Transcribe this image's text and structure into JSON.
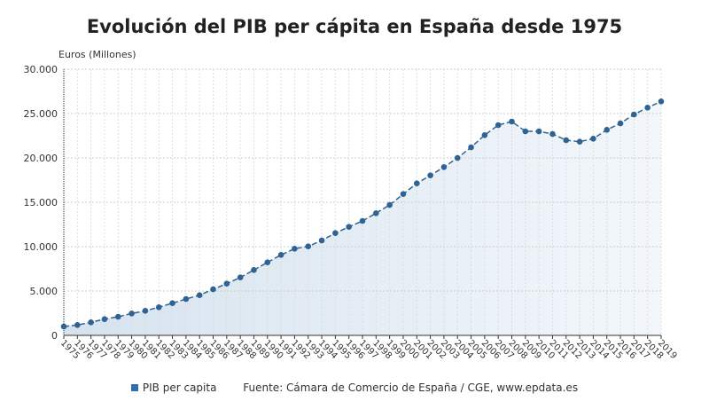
{
  "chart_data": {
    "type": "line",
    "title": "Evolución del PIB per cápita en España desde 1975",
    "ylabel": "Euros (Millones)",
    "xlabel": "",
    "ylim": [
      0,
      30000
    ],
    "yticks": [
      "0",
      "5.000",
      "10.000",
      "15.000",
      "20.000",
      "25.000",
      "30.000"
    ],
    "ytick_values": [
      0,
      5000,
      10000,
      15000,
      20000,
      25000,
      30000
    ],
    "grid": true,
    "x": [
      "1975",
      "1976",
      "1977",
      "1978",
      "1979",
      "1980",
      "1981",
      "1982",
      "1983",
      "1984",
      "1985",
      "1986",
      "1987",
      "1988",
      "1989",
      "1990",
      "1991",
      "1992",
      "1993",
      "1994",
      "1995",
      "1996",
      "1997",
      "1998",
      "1999",
      "2000",
      "2001",
      "2002",
      "2003",
      "2004",
      "2005",
      "2006",
      "2007",
      "2008",
      "2009",
      "2010",
      "2011",
      "2012",
      "2013",
      "2014",
      "2015",
      "2016",
      "2017",
      "2018",
      "2019"
    ],
    "series": [
      {
        "name": "PIB per capita",
        "color": "#2f6394",
        "values": [
          1000,
          1170,
          1470,
          1830,
          2100,
          2470,
          2770,
          3170,
          3630,
          4100,
          4530,
          5200,
          5830,
          6530,
          7370,
          8230,
          9070,
          9770,
          10030,
          10700,
          11530,
          12230,
          12900,
          13770,
          14700,
          15930,
          17130,
          18030,
          18970,
          20000,
          21200,
          22570,
          23700,
          24100,
          23000,
          23000,
          22700,
          22000,
          21830,
          22170,
          23170,
          23900,
          24900,
          25670,
          26370
        ]
      }
    ],
    "legend": "bottom",
    "source": "Fuente: Cámara de Comercio de España / CGE, www.epdata.es"
  }
}
